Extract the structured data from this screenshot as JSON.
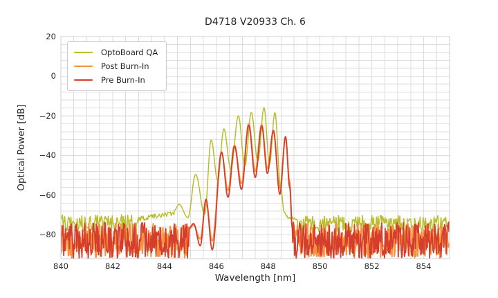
{
  "figure": {
    "background": "#ffffff"
  },
  "chart_data": {
    "type": "line",
    "title": "D4718 V20933 Ch. 6",
    "xlabel": "Wavelength [nm]",
    "ylabel": "Optical Power [dB]",
    "xlim": [
      840,
      855
    ],
    "ylim": [
      -92,
      20
    ],
    "x_ticks": [
      840,
      842,
      844,
      846,
      848,
      850,
      852,
      854
    ],
    "x_tick_labels": [
      "840",
      "842",
      "844",
      "846",
      "848",
      "850",
      "852",
      "854"
    ],
    "y_ticks": [
      20,
      0,
      -20,
      -40,
      -60,
      -80
    ],
    "y_tick_labels": [
      "20",
      "0",
      "−20",
      "−40",
      "−60",
      "−80"
    ],
    "grid": {
      "on": true,
      "color": "#dcdcdc",
      "x_step_nm": 0.5,
      "y_step_db": 4,
      "border_color": "#cfcfcf"
    },
    "legend": {
      "position": "upper-left",
      "entries": [
        "OptoBoard QA",
        "Post Burn-In",
        "Pre Burn-In"
      ]
    },
    "series": [
      {
        "name": "OptoBoard QA",
        "color": "#b9bd2b",
        "line_width": 1.5,
        "seed": 11,
        "segments": [
          {
            "type": "noise",
            "from": 840,
            "to": 843.0,
            "top": -69.8,
            "range": 8.5,
            "step": 0.03
          },
          {
            "type": "band",
            "from": 843.0,
            "to": 844.38,
            "top_start": -70.8,
            "top_end": -67.6,
            "amp": 2.4,
            "step": 0.035
          },
          {
            "type": "peaks",
            "step": 0.01,
            "points": [
              [
                844.38,
                -67.6
              ],
              [
                844.56,
                -64.6
              ],
              [
                844.9,
                -71.3
              ],
              [
                845.2,
                -49.5
              ],
              [
                845.55,
                -69.5
              ],
              [
                845.8,
                -32.2
              ],
              [
                846.05,
                -52.5
              ],
              [
                846.29,
                -26.6
              ],
              [
                846.56,
                -47
              ],
              [
                846.85,
                -20
              ],
              [
                847.1,
                -45.2
              ],
              [
                847.35,
                -18.3
              ],
              [
                847.6,
                -42.8
              ],
              [
                847.84,
                -15.9
              ],
              [
                848.05,
                -44.3
              ],
              [
                848.26,
                -18.4
              ],
              [
                848.48,
                -56
              ],
              [
                848.62,
                -68.5
              ],
              [
                848.73,
                -70.8
              ]
            ]
          },
          {
            "type": "band",
            "from": 848.73,
            "to": 849.12,
            "top_start": -70.2,
            "top_end": -70.8,
            "amp": 1.8,
            "step": 0.035
          },
          {
            "type": "noise",
            "from": 849.12,
            "to": 855,
            "top": -70.2,
            "range": 8.5,
            "step": 0.03
          }
        ]
      },
      {
        "name": "Post Burn-In",
        "color": "#f6913e",
        "line_width": 2.0,
        "seed": 5,
        "segments": [
          {
            "type": "noise",
            "from": 840,
            "to": 844.95,
            "top": -74.2,
            "range": 17.5,
            "step": 0.022
          },
          {
            "type": "peaks",
            "step": 0.01,
            "points": [
              [
                844.95,
                -77
              ],
              [
                845.12,
                -75
              ],
              [
                845.38,
                -82
              ],
              [
                845.6,
                -63.2
              ],
              [
                845.84,
                -83
              ],
              [
                846.2,
                -38.8
              ],
              [
                846.45,
                -57.5
              ],
              [
                846.7,
                -34.8
              ],
              [
                846.97,
                -54
              ],
              [
                847.25,
                -23.9
              ],
              [
                847.5,
                -48
              ],
              [
                847.75,
                -24.4
              ],
              [
                847.97,
                -46.5
              ],
              [
                848.2,
                -28
              ],
              [
                848.45,
                -56.5
              ],
              [
                848.67,
                -31
              ],
              [
                848.83,
                -53
              ],
              [
                848.93,
                -76.5
              ]
            ]
          },
          {
            "type": "noise",
            "from": 848.95,
            "to": 855,
            "top": -74.2,
            "range": 17.5,
            "step": 0.022
          }
        ]
      },
      {
        "name": "Pre Burn-In",
        "color": "#d53e2c",
        "line_width": 1.8,
        "seed": 3,
        "segments": [
          {
            "type": "noise",
            "from": 840,
            "to": 844.95,
            "top": -73.6,
            "range": 18.4,
            "step": 0.022
          },
          {
            "type": "peaks",
            "step": 0.01,
            "points": [
              [
                844.95,
                -76.5
              ],
              [
                845.12,
                -74.3
              ],
              [
                845.38,
                -85.5
              ],
              [
                845.6,
                -62
              ],
              [
                845.84,
                -87.5
              ],
              [
                846.2,
                -38.2
              ],
              [
                846.45,
                -61
              ],
              [
                846.7,
                -35.4
              ],
              [
                846.97,
                -57
              ],
              [
                847.25,
                -24.8
              ],
              [
                847.5,
                -51
              ],
              [
                847.75,
                -25.1
              ],
              [
                847.97,
                -49
              ],
              [
                848.2,
                -27.3
              ],
              [
                848.45,
                -59.5
              ],
              [
                848.67,
                -30.4
              ],
              [
                848.83,
                -56
              ],
              [
                848.93,
                -76
              ]
            ]
          },
          {
            "type": "noise",
            "from": 848.95,
            "to": 855,
            "top": -73.6,
            "range": 18.4,
            "step": 0.022
          }
        ]
      }
    ]
  }
}
